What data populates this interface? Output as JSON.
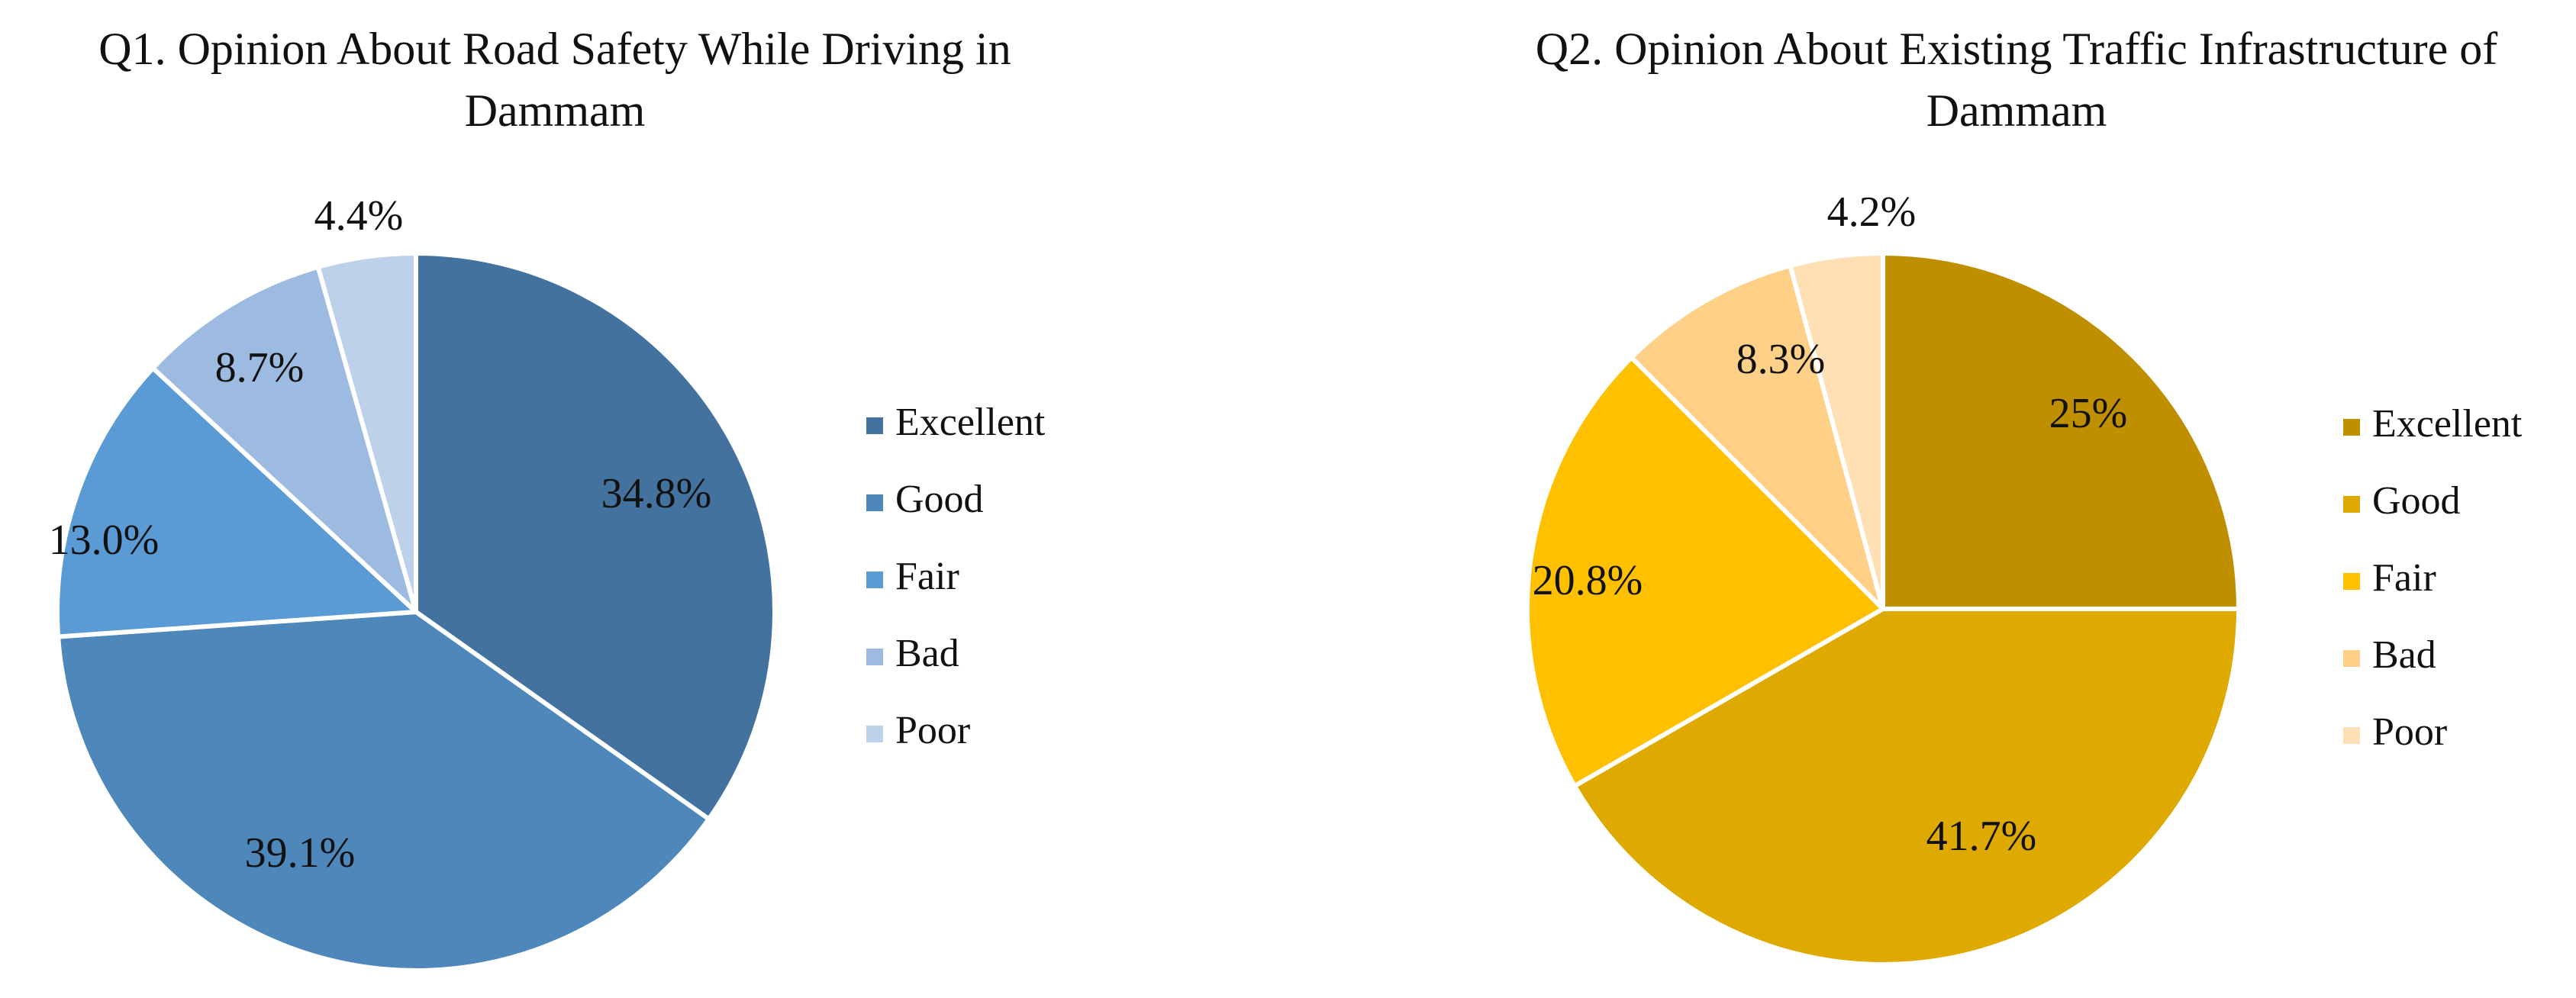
{
  "chart_data": [
    {
      "type": "pie",
      "title_lines": [
        "Q1.  Opinion About Road Safety While Driving  in",
        "Dammam"
      ],
      "categories": [
        "Excellent",
        "Good",
        "Fair",
        "Bad",
        "Poor"
      ],
      "values": [
        34.8,
        39.1,
        13.0,
        8.7,
        4.4
      ],
      "value_labels": [
        "34.8%",
        "39.1%",
        "13.0%",
        "8.7%",
        "4.4%"
      ],
      "colors": [
        "#43729E",
        "#4E87BA",
        "#5B9BD5",
        "#9DBBE1",
        "#BDD1EA"
      ],
      "legend_position": "right",
      "start_angle": "12 o'clock",
      "direction": "clockwise"
    },
    {
      "type": "pie",
      "title_lines": [
        "Q2.  Opinion About Existing Traffic Infrastructure of",
        "Dammam"
      ],
      "categories": [
        "Excellent",
        "Good",
        "Fair",
        "Bad",
        "Poor"
      ],
      "values": [
        25.0,
        41.7,
        20.8,
        8.3,
        4.2
      ],
      "value_labels": [
        "25%",
        "41.7%",
        "20.8%",
        "8.3%",
        "4.2%"
      ],
      "colors": [
        "#BF8F00",
        "#DEA900",
        "#FFC000",
        "#FFD188",
        "#FFE0B4"
      ],
      "legend_position": "right",
      "start_angle": "12 o'clock",
      "direction": "clockwise"
    }
  ]
}
